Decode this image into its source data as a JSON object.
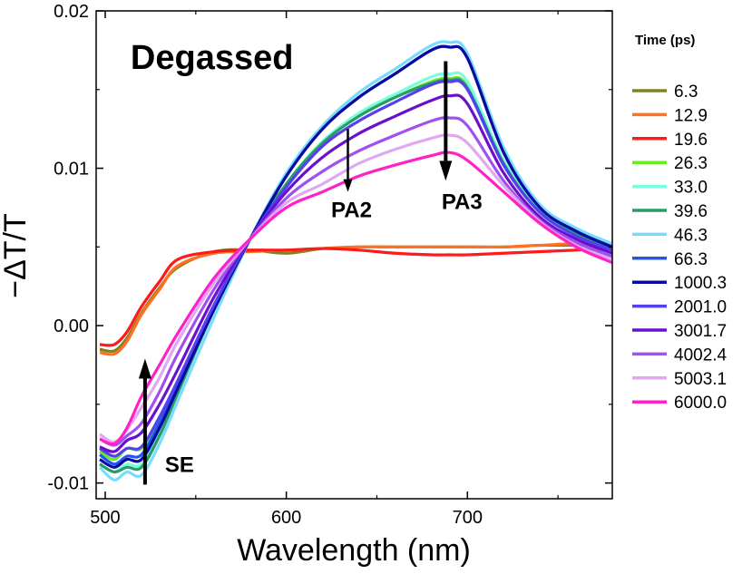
{
  "chart_data": {
    "type": "line",
    "title": "",
    "xlabel": "Wavelength (nm)",
    "ylabel": "−ΔT/T",
    "xlim": [
      495,
      780
    ],
    "ylim": [
      -0.011,
      0.02
    ],
    "xticks": [
      500,
      600,
      700
    ],
    "xtick_labels": [
      "500",
      "600",
      "700"
    ],
    "xminor": [
      550,
      650,
      750
    ],
    "yticks": [
      -0.01,
      0.0,
      0.01,
      0.02
    ],
    "ytick_labels": [
      "-0.01",
      "0.00",
      "0.01",
      "0.02"
    ],
    "yminor": [
      -0.005,
      0.005,
      0.015
    ],
    "grid": false,
    "legend_title": "Time (ps)",
    "legend_placement": "right-outside",
    "x": [
      497,
      505,
      512,
      520,
      530,
      540,
      560,
      580,
      600,
      620,
      640,
      660,
      680,
      690,
      700,
      720,
      740,
      760,
      780
    ],
    "series": [
      {
        "name": "6.3",
        "color": "#808020",
        "values": [
          -0.0015,
          -0.0016,
          -0.0008,
          0.0008,
          0.0024,
          0.0037,
          0.0047,
          0.0048,
          0.0046,
          0.0049,
          0.005,
          0.005,
          0.005,
          0.005,
          0.005,
          0.005,
          0.0051,
          0.0051,
          0.005
        ]
      },
      {
        "name": "12.9",
        "color": "#ff7020",
        "values": [
          -0.0017,
          -0.0018,
          -0.001,
          0.0007,
          0.0023,
          0.0038,
          0.0046,
          0.0047,
          0.0048,
          0.0049,
          0.005,
          0.005,
          0.005,
          0.005,
          0.005,
          0.005,
          0.0051,
          0.0052,
          0.005
        ]
      },
      {
        "name": "19.6",
        "color": "#ff1a1a",
        "values": [
          -0.0012,
          -0.0012,
          -0.0004,
          0.0012,
          0.0028,
          0.0042,
          0.0047,
          0.0048,
          0.0048,
          0.0049,
          0.0048,
          0.0046,
          0.0045,
          0.0045,
          0.0045,
          0.0046,
          0.0047,
          0.0048,
          0.0049
        ]
      },
      {
        "name": "26.3",
        "color": "#66ee22",
        "values": [
          -0.008,
          -0.0085,
          -0.0078,
          -0.0078,
          -0.006,
          -0.0037,
          0.0012,
          0.0055,
          0.009,
          0.0117,
          0.0133,
          0.0145,
          0.0155,
          0.0157,
          0.0152,
          0.0103,
          0.0072,
          0.0058,
          0.0049
        ]
      },
      {
        "name": "33.0",
        "color": "#77ffdd",
        "values": [
          -0.0088,
          -0.0093,
          -0.0088,
          -0.0088,
          -0.0068,
          -0.0042,
          0.001,
          0.0055,
          0.009,
          0.0117,
          0.0135,
          0.0147,
          0.0158,
          0.016,
          0.0155,
          0.0105,
          0.0073,
          0.0058,
          0.0049
        ]
      },
      {
        "name": "39.6",
        "color": "#2a9a6a",
        "values": [
          -0.0088,
          -0.0093,
          -0.009,
          -0.009,
          -0.007,
          -0.0043,
          0.001,
          0.0055,
          0.009,
          0.0116,
          0.0133,
          0.0145,
          0.0154,
          0.0156,
          0.0151,
          0.0103,
          0.0072,
          0.0058,
          0.0049
        ]
      },
      {
        "name": "46.3",
        "color": "#77ddff",
        "values": [
          -0.009,
          -0.0098,
          -0.0093,
          -0.0095,
          -0.0075,
          -0.0048,
          0.0005,
          0.0055,
          0.0097,
          0.0127,
          0.0148,
          0.0163,
          0.0178,
          0.018,
          0.0173,
          0.0113,
          0.0077,
          0.0062,
          0.0052
        ]
      },
      {
        "name": "66.3",
        "color": "#2255ee",
        "values": [
          -0.0082,
          -0.0088,
          -0.0083,
          -0.0082,
          -0.0062,
          -0.0038,
          0.0012,
          0.0055,
          0.0095,
          0.0125,
          0.0145,
          0.016,
          0.0175,
          0.0177,
          0.017,
          0.011,
          0.0075,
          0.006,
          0.005
        ]
      },
      {
        "name": "1000.3",
        "color": "#0a0aa0",
        "values": [
          -0.0085,
          -0.009,
          -0.0085,
          -0.0085,
          -0.0065,
          -0.004,
          0.001,
          0.0055,
          0.0095,
          0.0125,
          0.0145,
          0.016,
          0.0175,
          0.0177,
          0.017,
          0.011,
          0.0075,
          0.006,
          0.005
        ]
      },
      {
        "name": "2001.0",
        "color": "#5540ee",
        "values": [
          -0.0078,
          -0.0083,
          -0.0078,
          -0.0077,
          -0.0058,
          -0.0035,
          0.0013,
          0.0055,
          0.0088,
          0.0114,
          0.013,
          0.0142,
          0.0153,
          0.0155,
          0.015,
          0.0102,
          0.0072,
          0.0057,
          0.0048
        ]
      },
      {
        "name": "3001.7",
        "color": "#6a10cc",
        "values": [
          -0.0077,
          -0.008,
          -0.0073,
          -0.0068,
          -0.005,
          -0.0028,
          0.0018,
          0.0055,
          0.0085,
          0.0107,
          0.0122,
          0.0133,
          0.0143,
          0.0146,
          0.0141,
          0.0097,
          0.0069,
          0.0055,
          0.0046
        ]
      },
      {
        "name": "4002.4",
        "color": "#a050f0",
        "values": [
          -0.0072,
          -0.0076,
          -0.007,
          -0.0062,
          -0.0042,
          -0.0018,
          0.0023,
          0.0055,
          0.0081,
          0.0098,
          0.0111,
          0.0121,
          0.013,
          0.0132,
          0.0127,
          0.0092,
          0.0067,
          0.0053,
          0.0044
        ]
      },
      {
        "name": "5003.1",
        "color": "#e0a8f0",
        "values": [
          -0.0069,
          -0.0074,
          -0.0066,
          -0.0052,
          -0.0033,
          -0.001,
          0.0027,
          0.0055,
          0.0078,
          0.009,
          0.0103,
          0.0112,
          0.0119,
          0.0121,
          0.0116,
          0.0089,
          0.0066,
          0.0051,
          0.0042
        ]
      },
      {
        "name": "6000.0",
        "color": "#ff20c8",
        "values": [
          -0.0072,
          -0.0075,
          -0.0065,
          -0.0045,
          -0.0025,
          -0.0005,
          0.003,
          0.0055,
          0.0075,
          0.0085,
          0.0095,
          0.0102,
          0.0108,
          0.011,
          0.0105,
          0.0085,
          0.0065,
          0.005,
          0.004
        ]
      }
    ],
    "annotations": [
      {
        "text": "Degassed",
        "x": 514,
        "y": 0.0163,
        "size": "large"
      },
      {
        "text": "PA2",
        "x": 636,
        "y": 0.0069,
        "size": "medium"
      },
      {
        "text": "PA3",
        "x": 697,
        "y": 0.0074,
        "size": "medium"
      },
      {
        "text": "SE",
        "x": 541,
        "y": -0.0093,
        "size": "medium"
      }
    ],
    "arrows": [
      {
        "label": "SE",
        "x": 522,
        "from": -0.0101,
        "to": -0.0021
      },
      {
        "label": "PA2",
        "x": 634,
        "from": 0.0125,
        "to": 0.0085
      },
      {
        "label": "PA3",
        "x": 688,
        "from": 0.0168,
        "to": 0.0092
      }
    ]
  }
}
